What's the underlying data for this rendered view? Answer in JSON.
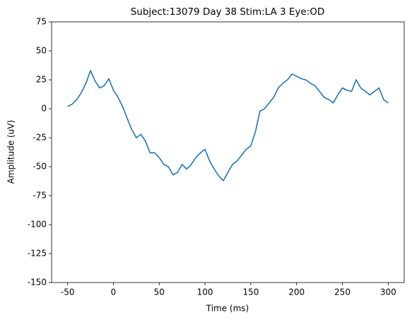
{
  "chart_data": {
    "type": "line",
    "title": "Subject:13079 Day 38 Stim:LA 3 Eye:OD",
    "xlabel": "Time (ms)",
    "ylabel": "Amplitude (uV)",
    "x": [
      -50,
      -45,
      -40,
      -35,
      -30,
      -25,
      -20,
      -15,
      -10,
      -5,
      0,
      5,
      10,
      15,
      20,
      25,
      30,
      35,
      40,
      45,
      50,
      55,
      60,
      65,
      70,
      75,
      80,
      85,
      90,
      95,
      100,
      105,
      110,
      115,
      120,
      125,
      130,
      135,
      140,
      145,
      150,
      155,
      160,
      165,
      170,
      175,
      180,
      185,
      190,
      195,
      200,
      205,
      210,
      215,
      220,
      225,
      230,
      235,
      240,
      245,
      250,
      255,
      260,
      265,
      270,
      275,
      280,
      285,
      290,
      295,
      300
    ],
    "series": [
      {
        "name": "amplitude",
        "color": "#1f77b4",
        "values": [
          2,
          4,
          8,
          14,
          22,
          33,
          24,
          18,
          20,
          26,
          16,
          10,
          2,
          -8,
          -18,
          -25,
          -22,
          -28,
          -38,
          -38,
          -42,
          -48,
          -50,
          -57,
          -55,
          -48,
          -52,
          -48,
          -42,
          -38,
          -35,
          -45,
          -52,
          -58,
          -62,
          -55,
          -48,
          -45,
          -40,
          -35,
          -32,
          -20,
          -2,
          0,
          5,
          10,
          18,
          22,
          25,
          30,
          28,
          26,
          25,
          22,
          20,
          15,
          10,
          8,
          5,
          12,
          18,
          16,
          15,
          25,
          18,
          15,
          12,
          15,
          18,
          8,
          5
        ]
      }
    ],
    "xlim": [
      -67.5,
      317.5
    ],
    "xticks": [
      -50,
      0,
      50,
      100,
      150,
      200,
      250,
      300
    ],
    "ylim": [
      -150,
      75
    ],
    "yticks": [
      -150,
      -125,
      -100,
      -75,
      -50,
      -25,
      0,
      25,
      50,
      75
    ]
  }
}
